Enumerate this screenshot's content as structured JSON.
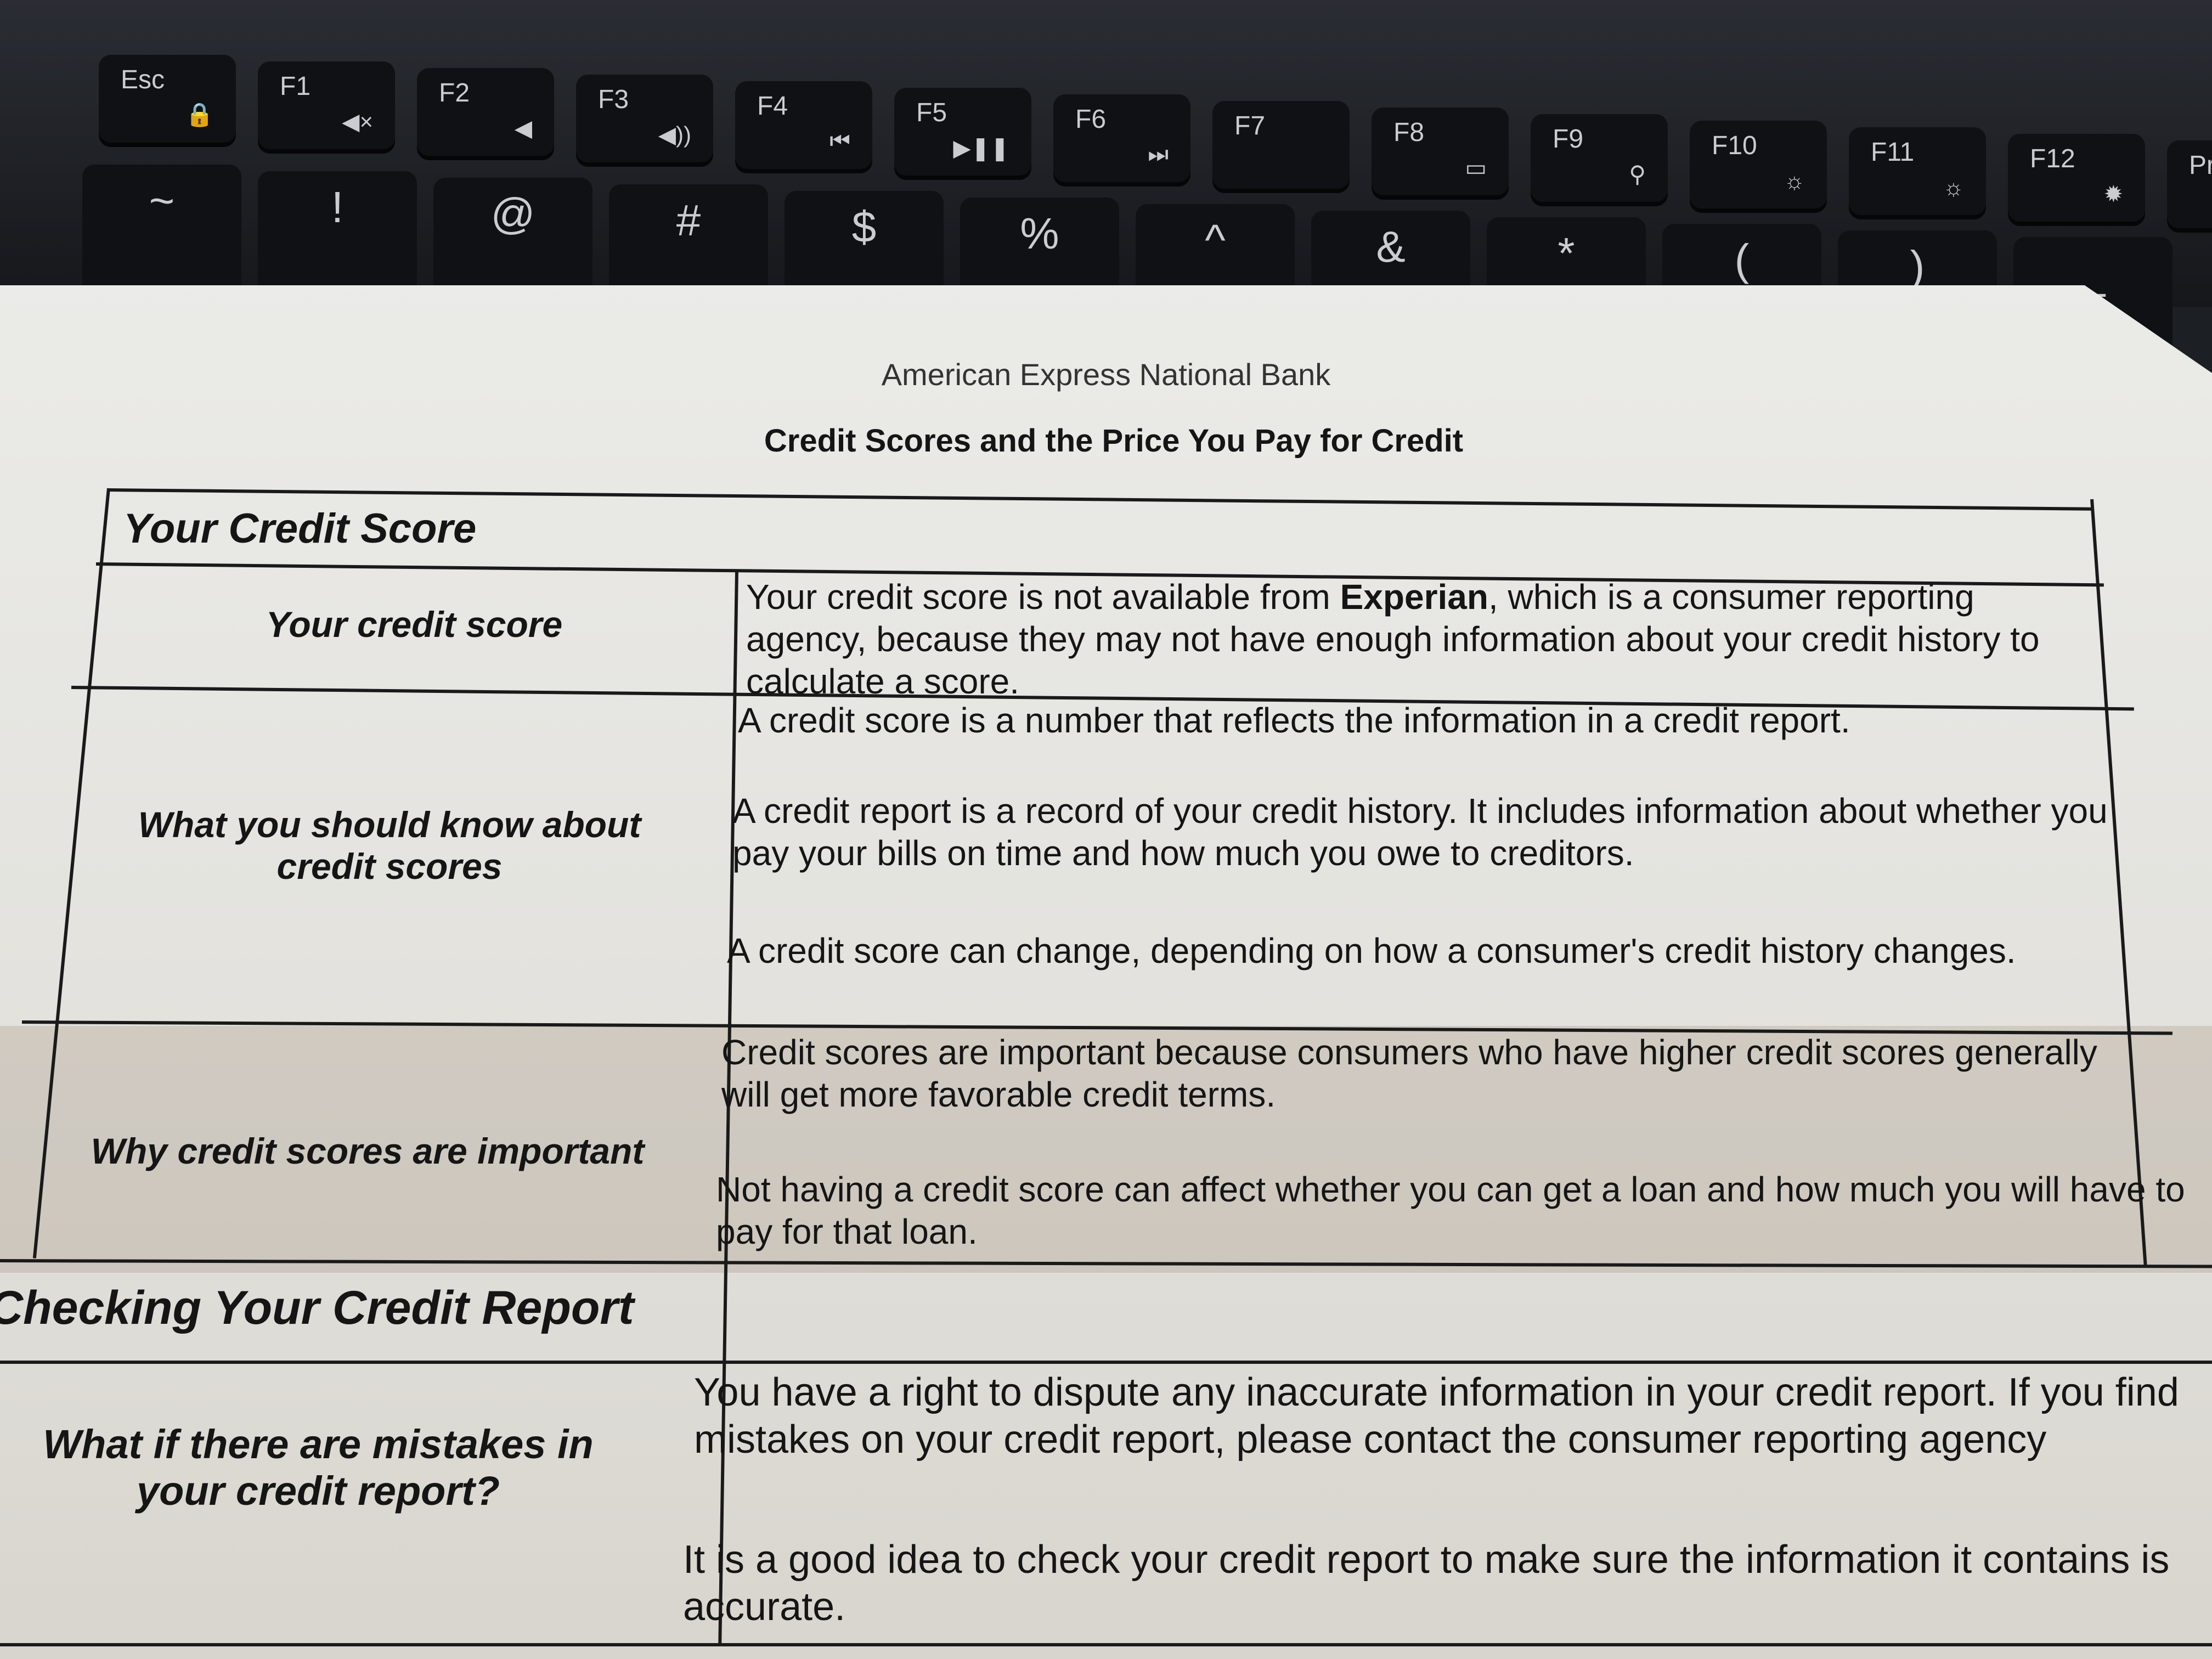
{
  "keyboard": {
    "fkeys": [
      {
        "l": "Esc",
        "i": "fn-lock"
      },
      {
        "l": "F1",
        "i": "mute"
      },
      {
        "l": "F2",
        "i": "vol-down"
      },
      {
        "l": "F3",
        "i": "vol-up"
      },
      {
        "l": "F4",
        "i": "prev"
      },
      {
        "l": "F5",
        "i": "play-pause"
      },
      {
        "l": "F6",
        "i": "next"
      },
      {
        "l": "F7",
        "i": ""
      },
      {
        "l": "F8",
        "i": "display"
      },
      {
        "l": "F9",
        "i": "search"
      },
      {
        "l": "F10",
        "i": "kbd-light"
      },
      {
        "l": "F11",
        "i": "bright-down"
      },
      {
        "l": "F12",
        "i": "bright-up"
      },
      {
        "l": "Pr",
        "i": ""
      }
    ],
    "nkeys": [
      "~",
      "!",
      "@",
      "#",
      "$",
      "%",
      "^",
      "&",
      "*",
      "(",
      ")",
      "_"
    ]
  },
  "doc": {
    "bank": "American Express National Bank",
    "title": "Credit Scores and the Price You Pay for Credit",
    "section1": "Your Credit Score",
    "rows": [
      {
        "label": "Your credit score",
        "text_html": "Your credit score is not available from <b>Experian</b>, which is a consumer reporting agency, because they may not have enough information about your credit history to calculate a score."
      },
      {
        "label": "What you should know about credit scores",
        "p1": "A credit score is a number that reflects the information in a credit report.",
        "p2": "A credit report is a record of your credit history. It includes information about whether you pay your bills on time and how much you owe to creditors.",
        "p3": "A credit score can change, depending on how a consumer's credit history changes."
      },
      {
        "label": "Why credit scores are important",
        "p1": "Credit scores are important because consumers who have higher credit scores generally will get more favorable credit terms.",
        "p2": "Not having a credit score can affect whether you can get a loan and how much you will have to pay for that loan."
      }
    ],
    "section2": "Checking Your Credit Report",
    "row4": {
      "label": "What if there are mistakes in your credit report?",
      "p1": "You have a right to dispute any inaccurate information in your credit report. If you find mistakes on your credit report, please contact the consumer reporting agency",
      "p2": "It is a good idea to check your credit report to make sure the information it contains is accurate."
    }
  }
}
